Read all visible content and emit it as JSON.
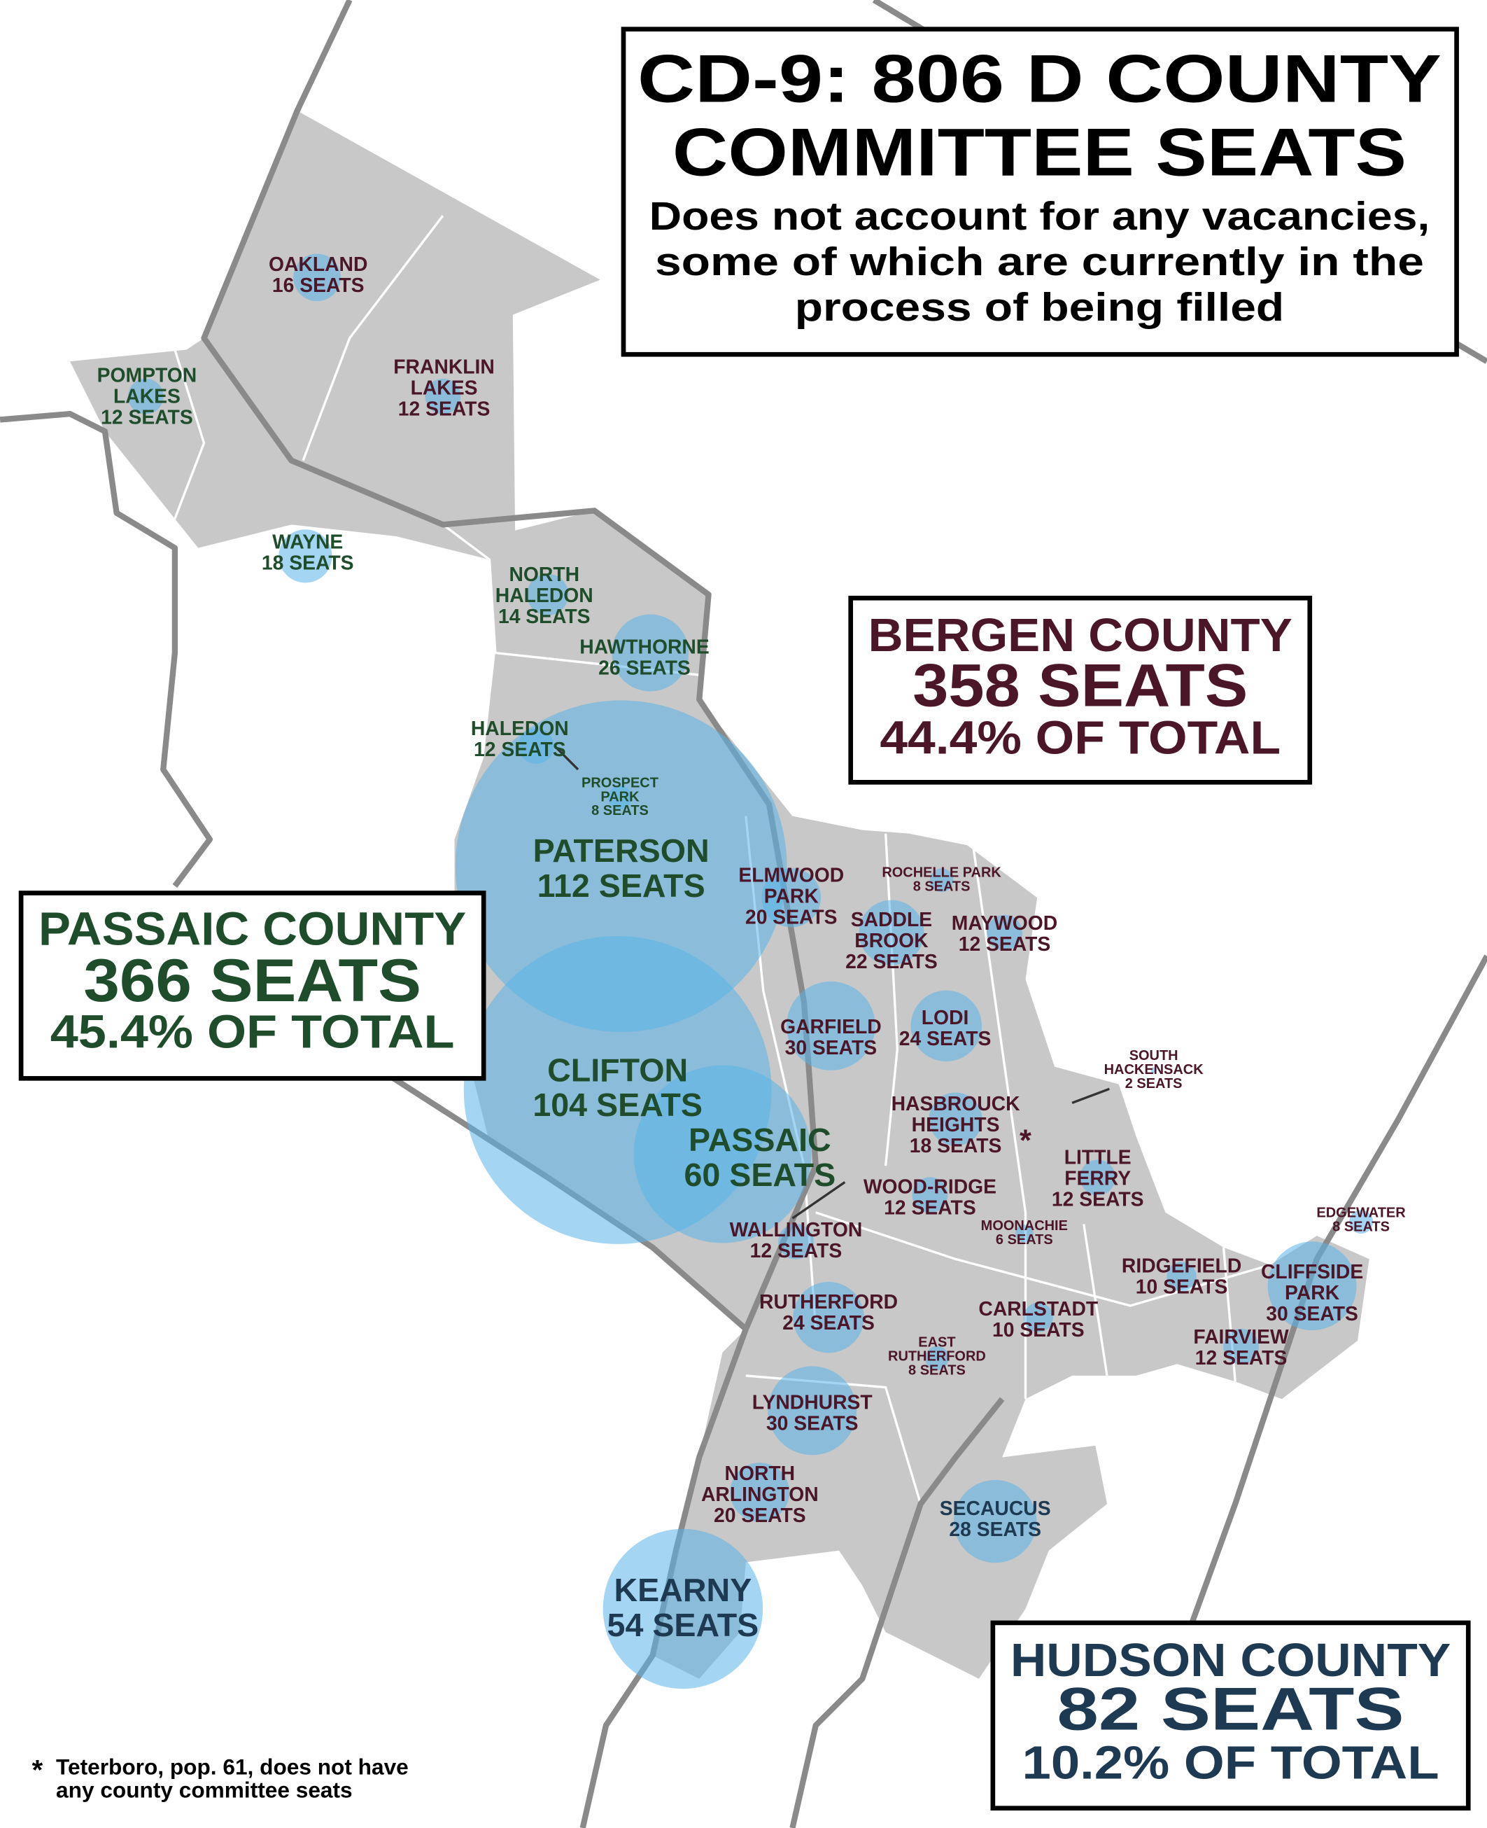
{
  "title": [
    "CD-9: 806 D COUNTY",
    "COMMITTEE SEATS"
  ],
  "subtitle": [
    "Does not account for any vacancies,",
    "some of which are currently in the",
    "process of being filled"
  ],
  "counties": [
    {
      "name": "PASSAIC COUNTY",
      "seats": 366,
      "seats_label": "366 SEATS",
      "share": 45.4,
      "share_label": "45.4% OF TOTAL",
      "color": "#1f4d2c",
      "municipalities": [
        {
          "name": [
            "POMPTON",
            "LAKES"
          ],
          "seats": 12,
          "seats_label": "12 SEATS"
        },
        {
          "name": [
            "WAYNE"
          ],
          "seats": 18,
          "seats_label": "18 SEATS"
        },
        {
          "name": [
            "NORTH",
            "HALEDON"
          ],
          "seats": 14,
          "seats_label": "14 SEATS"
        },
        {
          "name": [
            "HAWTHORNE"
          ],
          "seats": 26,
          "seats_label": "26 SEATS"
        },
        {
          "name": [
            "HALEDON"
          ],
          "seats": 12,
          "seats_label": "12 SEATS"
        },
        {
          "name": [
            "PROSPECT",
            "PARK"
          ],
          "seats": 8,
          "seats_label": "8 SEATS"
        },
        {
          "name": [
            "PATERSON"
          ],
          "seats": 112,
          "seats_label": "112 SEATS"
        },
        {
          "name": [
            "CLIFTON"
          ],
          "seats": 104,
          "seats_label": "104 SEATS"
        },
        {
          "name": [
            "PASSAIC"
          ],
          "seats": 60,
          "seats_label": "60 SEATS"
        }
      ]
    },
    {
      "name": "BERGEN COUNTY",
      "seats": 358,
      "seats_label": "358 SEATS",
      "share": 44.4,
      "share_label": "44.4% OF TOTAL",
      "color": "#4a1628",
      "municipalities": [
        {
          "name": [
            "OAKLAND"
          ],
          "seats": 16,
          "seats_label": "16 SEATS"
        },
        {
          "name": [
            "FRANKLIN",
            "LAKES"
          ],
          "seats": 12,
          "seats_label": "12 SEATS"
        },
        {
          "name": [
            "ELMWOOD",
            "PARK"
          ],
          "seats": 20,
          "seats_label": "20 SEATS"
        },
        {
          "name": [
            "ROCHELLE PARK"
          ],
          "seats": 8,
          "seats_label": "8 SEATS"
        },
        {
          "name": [
            "SADDLE",
            "BROOK"
          ],
          "seats": 22,
          "seats_label": "22 SEATS"
        },
        {
          "name": [
            "MAYWOOD"
          ],
          "seats": 12,
          "seats_label": "12 SEATS"
        },
        {
          "name": [
            "LODI"
          ],
          "seats": 24,
          "seats_label": "24 SEATS"
        },
        {
          "name": [
            "GARFIELD"
          ],
          "seats": 30,
          "seats_label": "30 SEATS"
        },
        {
          "name": [
            "SOUTH",
            "HACKENSACK"
          ],
          "seats": 2,
          "seats_label": "2 SEATS"
        },
        {
          "name": [
            "HASBROUCK",
            "HEIGHTS"
          ],
          "seats": 18,
          "seats_label": "18 SEATS"
        },
        {
          "name": [
            "LITTLE",
            "FERRY"
          ],
          "seats": 12,
          "seats_label": "12 SEATS"
        },
        {
          "name": [
            "WOOD-RIDGE"
          ],
          "seats": 12,
          "seats_label": "12 SEATS"
        },
        {
          "name": [
            "MOONACHIE"
          ],
          "seats": 6,
          "seats_label": "6 SEATS"
        },
        {
          "name": [
            "WALLINGTON"
          ],
          "seats": 12,
          "seats_label": "12 SEATS"
        },
        {
          "name": [
            "EDGEWATER"
          ],
          "seats": 8,
          "seats_label": "8 SEATS"
        },
        {
          "name": [
            "RIDGEFIELD"
          ],
          "seats": 10,
          "seats_label": "10 SEATS"
        },
        {
          "name": [
            "CLIFFSIDE",
            "PARK"
          ],
          "seats": 30,
          "seats_label": "30 SEATS"
        },
        {
          "name": [
            "RUTHERFORD"
          ],
          "seats": 24,
          "seats_label": "24 SEATS"
        },
        {
          "name": [
            "CARLSTADT"
          ],
          "seats": 10,
          "seats_label": "10 SEATS"
        },
        {
          "name": [
            "FAIRVIEW"
          ],
          "seats": 12,
          "seats_label": "12 SEATS"
        },
        {
          "name": [
            "EAST",
            "RUTHERFORD"
          ],
          "seats": 8,
          "seats_label": "8 SEATS"
        },
        {
          "name": [
            "LYNDHURST"
          ],
          "seats": 30,
          "seats_label": "30 SEATS"
        },
        {
          "name": [
            "NORTH",
            "ARLINGTON"
          ],
          "seats": 20,
          "seats_label": "20 SEATS"
        }
      ]
    },
    {
      "name": "HUDSON COUNTY",
      "seats": 82,
      "seats_label": "82 SEATS",
      "share": 10.2,
      "share_label": "10.2% OF TOTAL",
      "color": "#1d3a52",
      "municipalities": [
        {
          "name": [
            "SECAUCUS"
          ],
          "seats": 28,
          "seats_label": "28 SEATS"
        },
        {
          "name": [
            "KEARNY"
          ],
          "seats": 54,
          "seats_label": "54 SEATS"
        }
      ]
    }
  ],
  "teterboro_marker": "*",
  "footnote": {
    "marker": "*",
    "lines": [
      "Teterboro, pop. 61, does not have",
      "any county committee seats"
    ]
  }
}
